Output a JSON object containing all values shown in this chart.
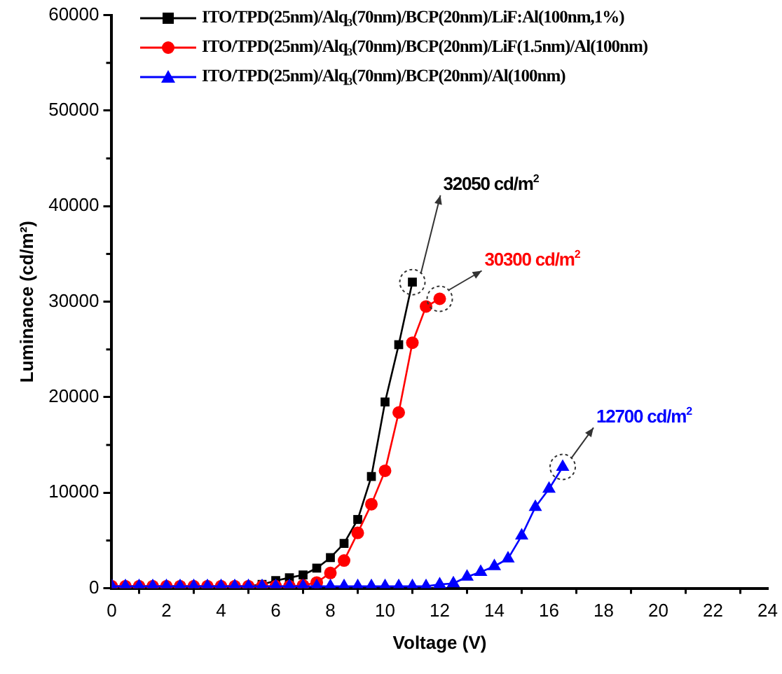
{
  "chart_data": {
    "type": "line",
    "xlabel": "Voltage (V)",
    "ylabel": "Luminance (cd/m²)",
    "xlim": [
      0,
      24
    ],
    "xticks": [
      0,
      2,
      4,
      6,
      8,
      10,
      12,
      14,
      16,
      18,
      20,
      22,
      24
    ],
    "ylim": [
      0,
      60000
    ],
    "yticks": [
      0,
      10000,
      20000,
      30000,
      40000,
      50000,
      60000
    ],
    "grid": false,
    "legend": "top left",
    "line_style": "solid",
    "series": [
      {
        "name": "ITO/TPD(25nm)/Alq₃(70nm)/BCP(20nm)/LiF:Al(100nm,1%)",
        "color": "#000000",
        "marker": "square",
        "x": [
          0,
          0.5,
          1,
          1.5,
          2,
          2.5,
          3,
          3.5,
          4,
          4.5,
          5,
          5.5,
          6,
          6.5,
          7,
          7.5,
          8,
          8.5,
          9,
          9.5,
          10,
          10.5,
          11
        ],
        "values": [
          200,
          200,
          200,
          200,
          200,
          200,
          200,
          200,
          200,
          200,
          200,
          400,
          800,
          1100,
          1400,
          2100,
          3200,
          4700,
          7200,
          11700,
          19500,
          25500,
          32050
        ]
      },
      {
        "name": "ITO/TPD(25nm)/Alq₃(70nm)/BCP(20nm)/LiF(1.5nm)/Al(100nm)",
        "color": "#ff0000",
        "marker": "circle",
        "x": [
          0,
          0.5,
          1,
          1.5,
          2,
          2.5,
          3,
          3.5,
          4,
          4.5,
          5,
          5.5,
          6,
          6.5,
          7,
          7.5,
          8,
          8.5,
          9,
          9.5,
          10,
          10.5,
          11,
          11.5,
          12
        ],
        "values": [
          200,
          200,
          200,
          200,
          200,
          200,
          200,
          200,
          200,
          200,
          200,
          200,
          200,
          200,
          300,
          600,
          1600,
          2900,
          5800,
          8800,
          12300,
          18400,
          25700,
          29500,
          30300
        ]
      },
      {
        "name": "ITO/TPD(25nm)/Alq₃(70nm)/BCP(20nm)/Al(100nm)",
        "color": "#0000ff",
        "marker": "triangle",
        "x": [
          0,
          0.5,
          1,
          1.5,
          2,
          2.5,
          3,
          3.5,
          4,
          4.5,
          5,
          5.5,
          6,
          6.5,
          7,
          7.5,
          8,
          8.5,
          9,
          9.5,
          10,
          10.5,
          11,
          11.5,
          12,
          12.5,
          13,
          13.5,
          14,
          14.5,
          15,
          15.5,
          16,
          16.5
        ],
        "values": [
          200,
          200,
          200,
          200,
          200,
          200,
          200,
          200,
          200,
          200,
          200,
          200,
          200,
          200,
          200,
          200,
          200,
          200,
          200,
          200,
          200,
          200,
          200,
          200,
          400,
          500,
          1200,
          1700,
          2300,
          3100,
          5500,
          8500,
          10400,
          12700
        ]
      }
    ],
    "annotations": [
      {
        "text": "32050 cd/m$^{2}$",
        "x": 11,
        "y": 32050
      },
      {
        "text": "30300 cd/m$^{2}$",
        "x": 12,
        "y": 30300
      },
      {
        "text": "12700 cd/m$^{2}$",
        "x": 16.5,
        "y": 12700
      }
    ]
  }
}
